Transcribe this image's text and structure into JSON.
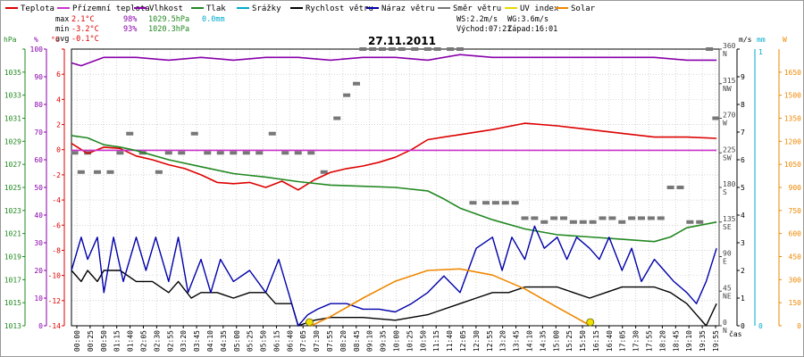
{
  "chart_data": {
    "type": "line",
    "title": "27.11.2011",
    "xlabel": "čas",
    "legend": [
      {
        "label": "Teplota",
        "color": "#dd0000"
      },
      {
        "label": "Přízemní teplota",
        "color": "#cc33cc"
      },
      {
        "label": "Vlhkost",
        "color": "#8800aa"
      },
      {
        "label": "Tlak",
        "color": "#228822"
      },
      {
        "label": "Srážky",
        "color": "#00aacc"
      },
      {
        "label": "Rychlost větru",
        "color": "#000000"
      },
      {
        "label": "Náraz větru",
        "color": "#0000aa"
      },
      {
        "label": "Směr větru",
        "color": "#777777"
      },
      {
        "label": "UV index",
        "color": "#e8d800"
      },
      {
        "label": "Solar",
        "color": "#ee8800"
      }
    ],
    "stats": {
      "max": {
        "label": "max",
        "temp": "2.1°C",
        "hum": "98%",
        "press": "1029.5hPa",
        "rain": "0.0mm"
      },
      "min": {
        "label": "min",
        "temp": "-3.2°C",
        "hum": "93%",
        "press": "1020.3hPa"
      },
      "avg": {
        "label": "avg",
        "temp": "-0.1°C"
      }
    },
    "info": {
      "ws": "WS:2.2m/s",
      "wg": "WG:3.6m/s",
      "sunrise": "Východ:07:21",
      "sunset": "Západ:16:01"
    },
    "axes": {
      "hpa": {
        "unit": "hPa",
        "range": [
          1013,
          1037
        ],
        "ticks": [
          1013,
          1015,
          1017,
          1019,
          1021,
          1023,
          1025,
          1027,
          1029,
          1031,
          1033,
          1035,
          1037
        ],
        "labels": [
          "1013",
          "1015",
          "1017",
          "1019",
          "1021",
          "1023",
          "1025",
          "1027",
          "1029",
          "1031",
          "1033",
          "1035",
          ""
        ]
      },
      "hum": {
        "unit": "%",
        "range": [
          0,
          100
        ],
        "ticks": [
          0,
          10,
          20,
          30,
          40,
          50,
          60,
          70,
          80,
          90,
          100
        ],
        "labels": [
          "0",
          "10",
          "20",
          "30",
          "40",
          "50",
          "60",
          "70",
          "80",
          "90",
          "100"
        ]
      },
      "temp": {
        "unit": "°C",
        "range": [
          -14,
          8
        ],
        "ticks": [
          -14,
          -12,
          -10,
          -8,
          -6,
          -4,
          -2,
          0,
          2,
          4,
          6,
          8
        ],
        "labels": [
          "-14",
          "-12",
          "-10",
          "-8",
          "-6",
          "-4",
          "-2",
          "0",
          "2",
          "4",
          "6",
          ""
        ]
      },
      "dir": {
        "range": [
          0,
          360
        ],
        "ticks": [
          0,
          45,
          90,
          135,
          180,
          225,
          270,
          315,
          360
        ],
        "labels": [
          "0",
          "45",
          "90",
          "135",
          "180",
          "225",
          "270",
          "315",
          "360"
        ],
        "names": [
          "N",
          "NE",
          "E",
          "SE",
          "S",
          "SW",
          "W",
          "NW",
          "N"
        ]
      },
      "ms": {
        "unit": "m/s",
        "range": [
          0,
          10
        ],
        "ticks": [
          0,
          1,
          2,
          3,
          4,
          5,
          6,
          7,
          8,
          9,
          10
        ],
        "labels": [
          "0",
          "1",
          "2",
          "3",
          "4",
          "5",
          "6",
          "7",
          "8",
          "9",
          ""
        ]
      },
      "mm": {
        "unit": "mm",
        "labels": [
          "0",
          "1"
        ]
      },
      "w": {
        "unit": "W",
        "range": [
          0,
          1800
        ],
        "ticks": [
          0,
          150,
          300,
          450,
          600,
          750,
          900,
          1050,
          1200,
          1350,
          1500,
          1650
        ],
        "labels": [
          "0",
          "150",
          "300",
          "450",
          "600",
          "750",
          "900",
          "1050",
          "1200",
          "1350",
          "1500",
          "1650"
        ]
      }
    },
    "x_ticks": [
      "00:00",
      "00:25",
      "00:50",
      "01:15",
      "01:40",
      "02:05",
      "02:30",
      "02:55",
      "03:20",
      "03:45",
      "04:10",
      "04:35",
      "05:00",
      "05:25",
      "05:50",
      "06:15",
      "06:40",
      "07:05",
      "07:30",
      "07:55",
      "08:20",
      "08:45",
      "09:10",
      "09:35",
      "10:00",
      "10:25",
      "10:50",
      "11:15",
      "11:40",
      "12:05",
      "12:30",
      "12:55",
      "13:20",
      "13:45",
      "14:10",
      "14:35",
      "15:00",
      "15:25",
      "15:50",
      "16:15",
      "16:40",
      "17:05",
      "17:30",
      "17:55",
      "18:20",
      "18:45",
      "19:10",
      "19:35",
      "19:55"
    ],
    "x_range_hours": [
      0,
      20
    ],
    "series": [
      {
        "name": "Teplota",
        "axis": "temp",
        "x": [
          0,
          0.5,
          1,
          1.5,
          2,
          2.5,
          3,
          3.5,
          4,
          4.5,
          5,
          5.5,
          6,
          6.5,
          7,
          7.5,
          8,
          8.5,
          9,
          9.5,
          10,
          10.5,
          11,
          11.5,
          12,
          13,
          14,
          15,
          16,
          17,
          18,
          19,
          19.92
        ],
        "y": [
          0.5,
          -0.3,
          0.2,
          0.1,
          -0.5,
          -0.8,
          -1.2,
          -1.5,
          -2.0,
          -2.6,
          -2.7,
          -2.6,
          -3.0,
          -2.5,
          -3.2,
          -2.4,
          -1.8,
          -1.5,
          -1.3,
          -1.0,
          -0.6,
          0.0,
          0.8,
          1.0,
          1.2,
          1.6,
          2.1,
          1.9,
          1.6,
          1.3,
          1.0,
          1.0,
          0.9
        ]
      },
      {
        "name": "Přízemní teplota",
        "axis": "temp",
        "x": [
          0,
          19.92
        ],
        "y": [
          -0.05,
          -0.05
        ]
      },
      {
        "name": "Vlhkost",
        "axis": "hum",
        "x": [
          0,
          0.3,
          1,
          2,
          3,
          4,
          5,
          6,
          7,
          8,
          9,
          10,
          11,
          12,
          13,
          14,
          15,
          16,
          17,
          18,
          19,
          19.92
        ],
        "y": [
          95,
          94,
          97,
          97,
          96,
          97,
          96,
          97,
          97,
          96,
          97,
          97,
          96,
          98,
          97,
          97,
          97,
          97,
          97,
          97,
          96,
          96
        ]
      },
      {
        "name": "Tlak",
        "axis": "hpa",
        "x": [
          0,
          0.5,
          1,
          1.5,
          2,
          2.5,
          3,
          4,
          5,
          6,
          7,
          8,
          9,
          10,
          11,
          11.5,
          12,
          13,
          14,
          15,
          16,
          17,
          18,
          18.5,
          19,
          19.92
        ],
        "y": [
          1029.5,
          1029.3,
          1028.7,
          1028.5,
          1028.2,
          1027.8,
          1027.4,
          1026.8,
          1026.2,
          1025.9,
          1025.5,
          1025.2,
          1025.1,
          1025.0,
          1024.7,
          1024.0,
          1023.2,
          1022.2,
          1021.4,
          1020.9,
          1020.7,
          1020.5,
          1020.3,
          1020.7,
          1021.5,
          1022.0
        ]
      },
      {
        "name": "Rychlost větru",
        "axis": "ms",
        "x": [
          0,
          0.3,
          0.5,
          0.8,
          1,
          1.5,
          2,
          2.5,
          3,
          3.3,
          3.7,
          4,
          4.5,
          5,
          5.5,
          6,
          6.3,
          6.8,
          7,
          7.5,
          8,
          8.5,
          9,
          10,
          11,
          12,
          12.5,
          13,
          13.5,
          14,
          14.5,
          15,
          15.5,
          16,
          16.5,
          17,
          17.5,
          18,
          18.5,
          19,
          19.3,
          19.6,
          19.92
        ],
        "y": [
          2.0,
          1.6,
          2.0,
          1.6,
          2.0,
          2.0,
          1.6,
          1.6,
          1.2,
          1.6,
          1.0,
          1.2,
          1.2,
          1.0,
          1.2,
          1.2,
          0.8,
          0.8,
          0.0,
          0.2,
          0.3,
          0.3,
          0.3,
          0.2,
          0.4,
          0.8,
          1.0,
          1.2,
          1.2,
          1.4,
          1.4,
          1.4,
          1.2,
          1.0,
          1.2,
          1.4,
          1.4,
          1.4,
          1.2,
          0.8,
          0.4,
          0.0,
          0.8
        ]
      },
      {
        "name": "Náraz větru",
        "axis": "ms",
        "x": [
          0,
          0.3,
          0.5,
          0.8,
          1,
          1.3,
          1.6,
          2,
          2.3,
          2.6,
          3,
          3.3,
          3.6,
          4,
          4.3,
          4.6,
          5,
          5.5,
          6,
          6.4,
          6.7,
          7,
          7.3,
          7.6,
          8,
          8.5,
          9,
          9.5,
          10,
          10.5,
          11,
          11.5,
          12,
          12.5,
          13,
          13.3,
          13.6,
          14,
          14.3,
          14.6,
          15,
          15.3,
          15.6,
          16,
          16.3,
          16.6,
          17,
          17.3,
          17.6,
          18,
          18.3,
          18.6,
          19,
          19.3,
          19.6,
          19.92
        ],
        "y": [
          2.0,
          3.2,
          2.4,
          3.2,
          1.2,
          3.2,
          1.6,
          3.2,
          2.0,
          3.2,
          1.6,
          3.2,
          1.2,
          2.4,
          1.2,
          2.4,
          1.6,
          2.0,
          1.2,
          2.4,
          1.2,
          0.0,
          0.4,
          0.6,
          0.8,
          0.8,
          0.6,
          0.6,
          0.5,
          0.8,
          1.2,
          1.8,
          1.2,
          2.8,
          3.2,
          2.0,
          3.2,
          2.4,
          3.6,
          2.8,
          3.2,
          2.4,
          3.2,
          2.8,
          2.4,
          3.2,
          2.0,
          2.8,
          1.6,
          2.4,
          2.0,
          1.6,
          1.2,
          0.8,
          1.6,
          2.8
        ]
      },
      {
        "name": "Solar",
        "axis": "w",
        "x": [
          7.4,
          8,
          9,
          10,
          11,
          12,
          13,
          14,
          15,
          16.03
        ],
        "y": [
          0,
          60,
          180,
          290,
          360,
          370,
          330,
          240,
          120,
          0
        ]
      }
    ],
    "wind_dir": {
      "x": [
        0.1,
        0.3,
        0.5,
        0.8,
        1.2,
        1.5,
        1.8,
        2.2,
        2.7,
        3.0,
        3.4,
        3.8,
        4.2,
        4.6,
        5.0,
        5.4,
        5.8,
        6.2,
        6.6,
        7.0,
        7.4,
        7.8,
        8.2,
        8.5,
        8.8,
        9.0,
        9.3,
        9.6,
        9.9,
        10.2,
        10.6,
        11.0,
        11.3,
        11.7,
        12.0,
        12.4,
        12.8,
        13.1,
        13.4,
        13.7,
        14.0,
        14.3,
        14.6,
        14.9,
        15.2,
        15.5,
        15.8,
        16.1,
        16.4,
        16.7,
        17.0,
        17.3,
        17.6,
        17.9,
        18.2,
        18.5,
        18.8,
        19.1,
        19.4,
        19.7,
        19.9
      ],
      "y": [
        225,
        200,
        225,
        200,
        200,
        225,
        250,
        225,
        200,
        225,
        225,
        250,
        225,
        225,
        225,
        225,
        225,
        250,
        225,
        225,
        225,
        200,
        270,
        300,
        315,
        360,
        360,
        360,
        360,
        360,
        360,
        360,
        360,
        360,
        360,
        160,
        160,
        160,
        160,
        160,
        140,
        140,
        135,
        140,
        140,
        135,
        135,
        135,
        140,
        140,
        135,
        140,
        140,
        140,
        140,
        180,
        180,
        135,
        135,
        360,
        270
      ]
    },
    "markers": [
      {
        "name": "sunrise-marker",
        "x": 7.35
      },
      {
        "name": "sunset-marker",
        "x": 16.02
      }
    ]
  }
}
